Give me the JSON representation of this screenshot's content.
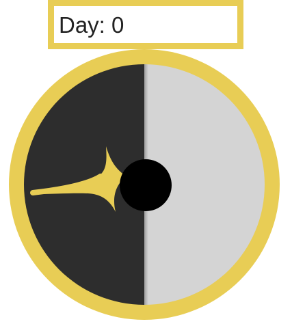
{
  "day_display": {
    "label": "Day: 0"
  },
  "dial": {
    "ring_color": "#e8cd55",
    "dark_half_color": "#2d2d2d",
    "light_half_color": "#d4d4d4",
    "hub_color": "#000000",
    "pointer_color": "#e8cd55",
    "pointer_icon": "star-pointer-icon",
    "hub_icon": "center-hub"
  }
}
